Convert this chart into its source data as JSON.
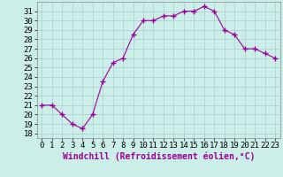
{
  "x": [
    0,
    1,
    2,
    3,
    4,
    5,
    6,
    7,
    8,
    9,
    10,
    11,
    12,
    13,
    14,
    15,
    16,
    17,
    18,
    19,
    20,
    21,
    22,
    23
  ],
  "y": [
    21,
    21,
    20,
    19,
    18.5,
    20,
    23.5,
    25.5,
    26,
    28.5,
    30,
    30,
    30.5,
    30.5,
    31,
    31,
    31.5,
    31,
    29,
    28.5,
    27,
    27,
    26.5,
    26
  ],
  "line_color": "#990099",
  "marker": "+",
  "marker_size": 4,
  "marker_color": "#990099",
  "xlabel": "Windchill (Refroidissement éolien,°C)",
  "xlabel_fontsize": 7,
  "xticks": [
    0,
    1,
    2,
    3,
    4,
    5,
    6,
    7,
    8,
    9,
    10,
    11,
    12,
    13,
    14,
    15,
    16,
    17,
    18,
    19,
    20,
    21,
    22,
    23
  ],
  "yticks": [
    18,
    19,
    20,
    21,
    22,
    23,
    24,
    25,
    26,
    27,
    28,
    29,
    30,
    31
  ],
  "ylim": [
    17.5,
    32.0
  ],
  "xlim": [
    -0.5,
    23.5
  ],
  "bg_color": "#cceee8",
  "grid_color": "#aacccc",
  "tick_fontsize": 6.5
}
